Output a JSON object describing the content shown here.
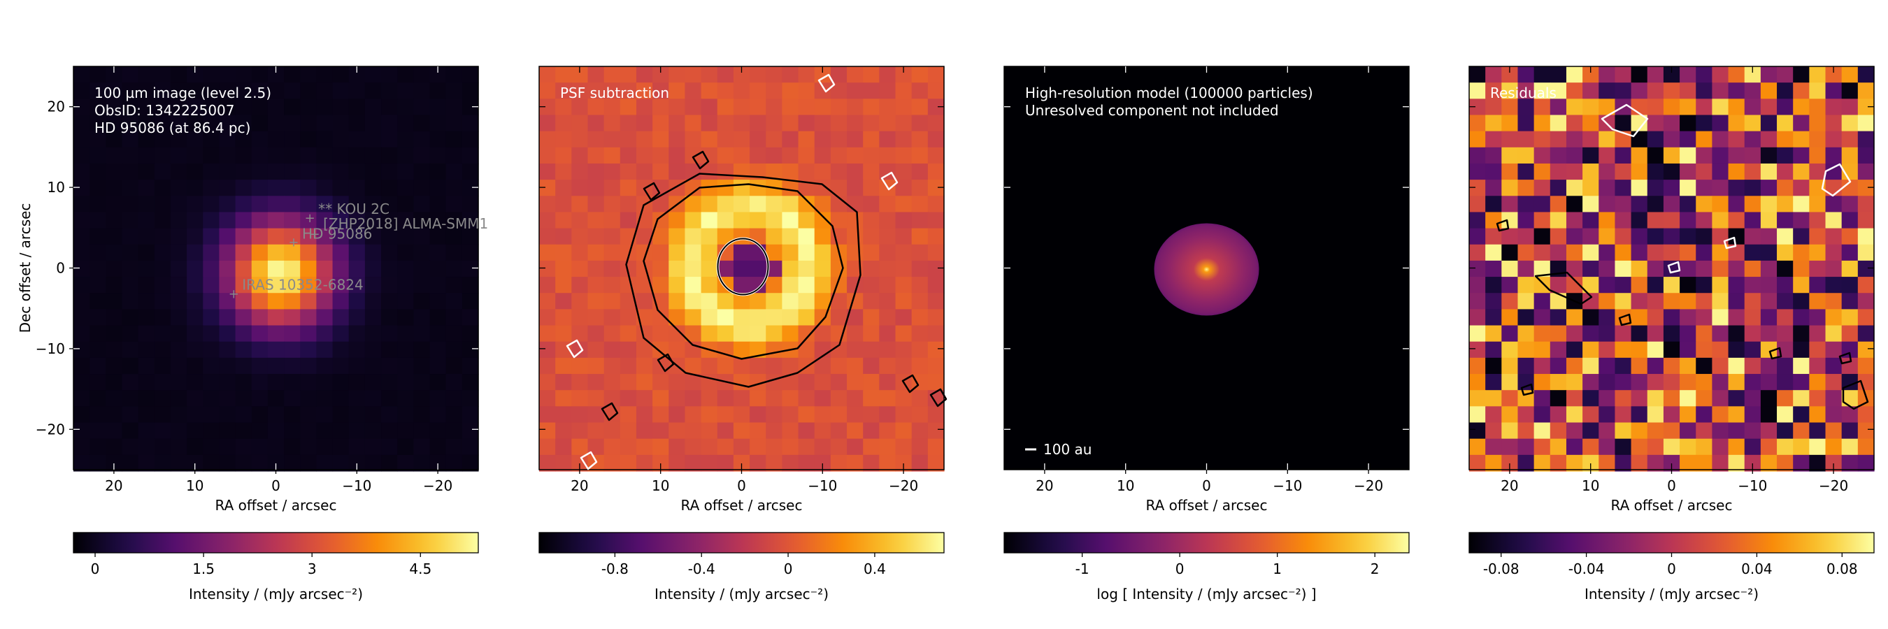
{
  "chart_data": [
    {
      "type": "heatmap",
      "title": "",
      "annotation_lines": [
        "100 µm image (level 2.5)",
        "ObsID: 1342225007",
        "HD 95086 (at 86.4 pc)"
      ],
      "xlabel": "RA offset / arcsec",
      "ylabel": "Dec offset / arcsec",
      "xlim": [
        25,
        -25
      ],
      "ylim": [
        -25,
        25
      ],
      "xticks": [
        20,
        10,
        0,
        -10,
        -20
      ],
      "yticks": [
        20,
        10,
        0,
        -10,
        -20
      ],
      "xtick_labels": [
        "20",
        "10",
        "0",
        "−10",
        "−20"
      ],
      "ytick_labels": [
        "20",
        "10",
        "0",
        "−10",
        "−20"
      ],
      "colormap": "inferno",
      "colorbar": {
        "min": -0.3,
        "max": 5.3,
        "ticks": [
          0,
          1.5,
          3,
          4.5
        ],
        "tick_labels": [
          "0",
          "1.5",
          "3",
          "4.5"
        ],
        "label": "Intensity / (mJy arcsec⁻²)"
      },
      "source_markers": [
        {
          "label": "** KOU    2C",
          "x": -4.2,
          "y": 6.2
        },
        {
          "label": "[ZHP2018] ALMA-SMM1",
          "x": -4.8,
          "y": 4.2
        },
        {
          "label": "HD 95086",
          "x": -2.2,
          "y": 3.2
        },
        {
          "label": "IRAS 10352-6824",
          "x": 5.2,
          "y": -3.2
        }
      ],
      "source_marker_color": "#8a8a8a"
    },
    {
      "type": "heatmap",
      "annotation_lines": [
        "PSF subtraction"
      ],
      "xlabel": "RA offset / arcsec",
      "xlim": [
        25,
        -25
      ],
      "ylim": [
        -25,
        25
      ],
      "xticks": [
        20,
        10,
        0,
        -10,
        -20
      ],
      "xtick_labels": [
        "20",
        "10",
        "0",
        "−10",
        "−20"
      ],
      "colormap": "inferno",
      "colorbar": {
        "min": -1.15,
        "max": 0.72,
        "ticks": [
          -0.8,
          -0.4,
          0,
          0.4
        ],
        "tick_labels": [
          "-0.8",
          "-0.4",
          "0",
          "0.4"
        ],
        "label": "Intensity / (mJy arcsec⁻²)"
      },
      "contours": "black and white contour lines"
    },
    {
      "type": "heatmap",
      "annotation_lines": [
        "High-resolution model (100000 particles)",
        "Unresolved component not included"
      ],
      "xlabel": "RA offset / arcsec",
      "xlim": [
        25,
        -25
      ],
      "ylim": [
        -25,
        25
      ],
      "xticks": [
        20,
        10,
        0,
        -10,
        -20
      ],
      "xtick_labels": [
        "20",
        "10",
        "0",
        "−10",
        "−20"
      ],
      "colormap": "inferno",
      "scalebar_label": "100 au",
      "colorbar": {
        "min": -1.8,
        "max": 2.35,
        "ticks": [
          -1,
          0,
          1,
          2
        ],
        "tick_labels": [
          "-1",
          "0",
          "1",
          "2"
        ],
        "label": "log [ Intensity / (mJy arcsec⁻²) ]"
      }
    },
    {
      "type": "heatmap",
      "annotation_lines": [
        "Residuals"
      ],
      "xlabel": "RA offset / arcsec",
      "xlim": [
        25,
        -25
      ],
      "ylim": [
        -25,
        25
      ],
      "xticks": [
        20,
        10,
        0,
        -10,
        -20
      ],
      "xtick_labels": [
        "20",
        "10",
        "0",
        "−10",
        "−20"
      ],
      "colormap": "inferno",
      "colorbar": {
        "min": -0.095,
        "max": 0.095,
        "ticks": [
          -0.08,
          -0.04,
          0,
          0.04,
          0.08
        ],
        "tick_labels": [
          "-0.08",
          "-0.04",
          "0",
          "0.04",
          "0.08"
        ],
        "label": "Intensity / (mJy arcsec⁻²)"
      },
      "contours": "black and white contour lines"
    }
  ]
}
